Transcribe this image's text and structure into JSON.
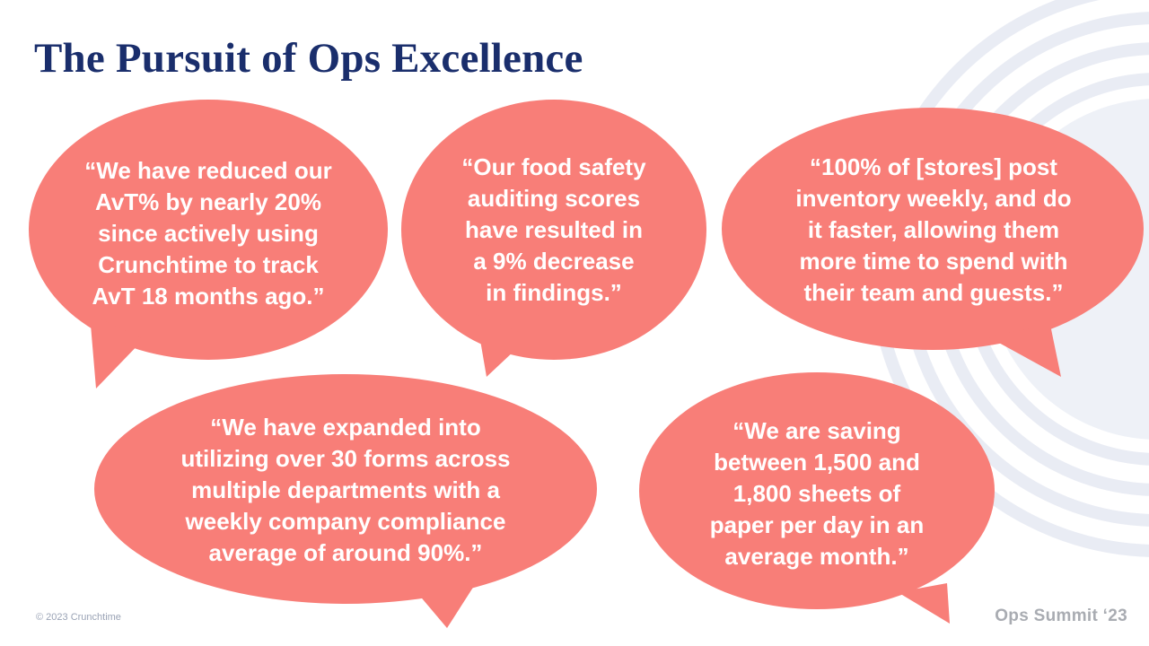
{
  "title": "The Pursuit of Ops Excellence",
  "quotes": [
    {
      "text": "“We have reduced our\nAvT% by nearly 20%\nsince actively using\nCrunchtime to track\nAvT 18 months ago.”"
    },
    {
      "text": "“Our food safety\nauditing scores\nhave resulted in\na 9% decrease\nin findings.”"
    },
    {
      "text": "“100% of [stores] post\ninventory weekly, and do\nit faster, allowing them\nmore time to spend with\ntheir team and guests.”"
    },
    {
      "text": "“We have expanded into\nutilizing over 30 forms across\nmultiple departments with a\nweekly company compliance\naverage of around 90%.”"
    },
    {
      "text": "“We are saving\nbetween 1,500 and\n1,800 sheets of\npaper per day in an\naverage month.”"
    }
  ],
  "footer": {
    "copyright": "© 2023 Crunchtime",
    "event": "Ops Summit ‘23"
  },
  "colors": {
    "title": "#1a2e6c",
    "bubble": "#f87e78",
    "decor": "#e9ecf4"
  }
}
